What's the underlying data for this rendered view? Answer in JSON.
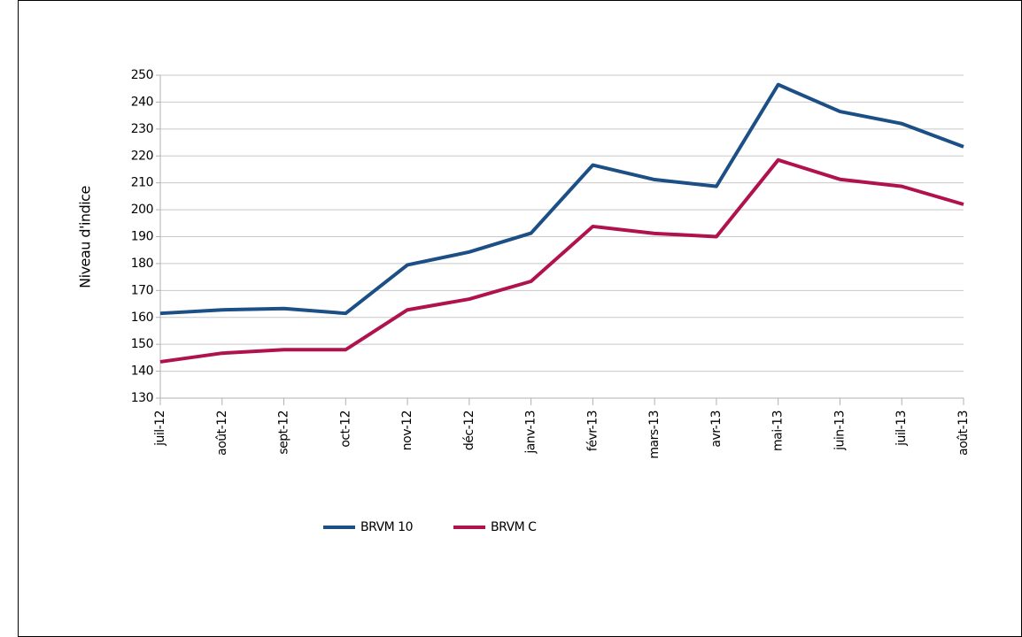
{
  "chart_data": {
    "type": "line",
    "y_label": "Niveau d'indice",
    "categories": [
      "juil-12",
      "août-12",
      "sept-12",
      "oct-12",
      "nov-12",
      "déc-12",
      "janv-13",
      "févr-13",
      "mars-13",
      "avr-13",
      "mai-13",
      "juin-13",
      "juil-13",
      "août-13"
    ],
    "series": [
      {
        "name": "BRVM 10",
        "color": "#1b4f86",
        "values": [
          161.5,
          162.8,
          163.3,
          161.5,
          179.5,
          184.3,
          191.3,
          216.6,
          211.2,
          208.7,
          246.5,
          236.5,
          232,
          223.4
        ]
      },
      {
        "name": "BRVM C",
        "color": "#b0124e",
        "values": [
          143.5,
          146.7,
          148,
          148,
          162.8,
          166.8,
          173.4,
          193.8,
          191.2,
          190,
          218.5,
          211.3,
          208.7,
          202
        ]
      }
    ],
    "ylim": [
      130,
      250
    ],
    "yticks": [
      130,
      140,
      150,
      160,
      170,
      180,
      190,
      200,
      210,
      220,
      230,
      240,
      250
    ],
    "grid": true
  }
}
